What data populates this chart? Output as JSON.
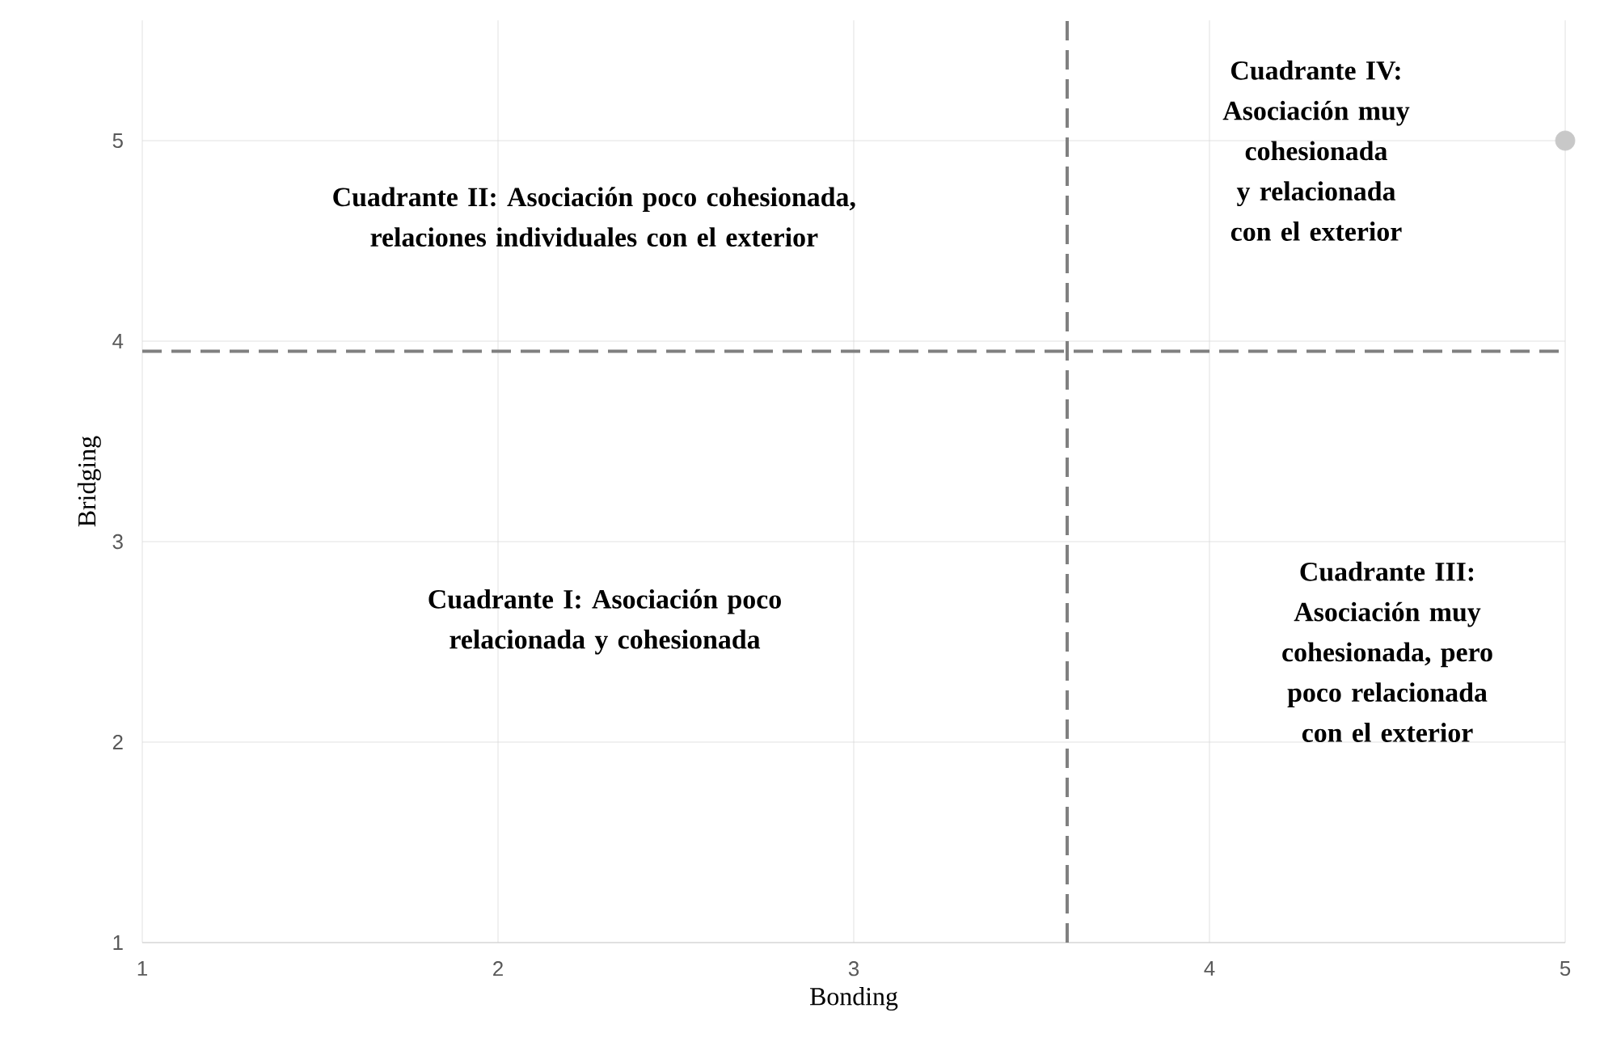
{
  "chart_data": {
    "type": "scatter",
    "xlabel": "Bonding",
    "ylabel": "Bridging",
    "x": [
      5
    ],
    "values": [
      5
    ],
    "color": "#c8c8c8",
    "marker": "circle",
    "xlim": [
      1,
      5
    ],
    "ylim": [
      1,
      5.6
    ],
    "xticks": [
      1,
      2,
      3,
      4,
      5
    ],
    "yticks": [
      1,
      2,
      3,
      4,
      5
    ],
    "grid": true,
    "ref_lines": [
      {
        "axis": "x",
        "value": 3.6,
        "color": "#808080",
        "line_style": "dashed"
      },
      {
        "axis": "y",
        "value": 3.95,
        "color": "#808080",
        "line_style": "dashed"
      }
    ],
    "annotations": [
      "Cuadrante II: Asociación poco cohesionada, relaciones individuales con el exterior",
      "Cuadrante IV: Asociación muy cohesionada y relacionada con el exterior",
      "Cuadrante I: Asociación poco relacionada y cohesionada",
      "Cuadrante III: Asociación muy cohesionada, pero poco relacionada con el exterior"
    ]
  }
}
